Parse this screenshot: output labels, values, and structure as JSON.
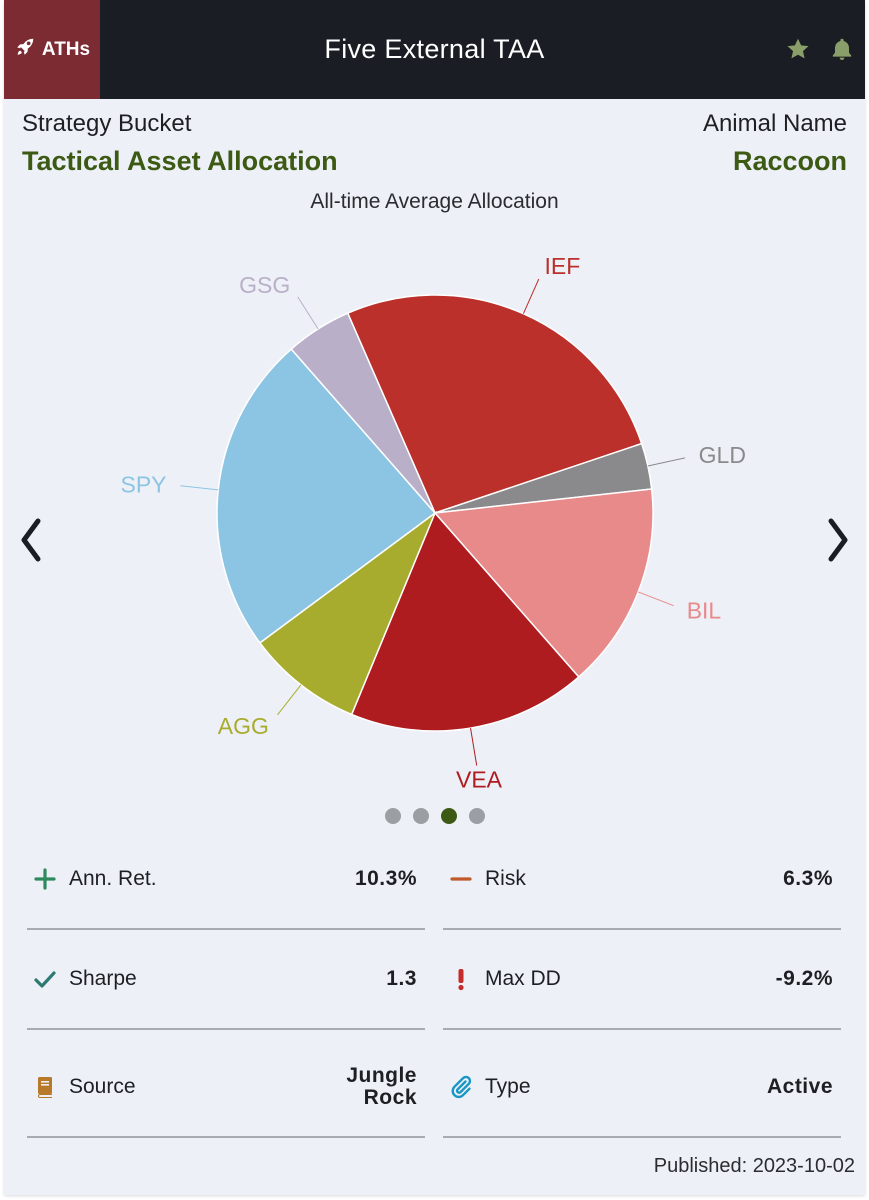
{
  "header": {
    "brand_label": "ATHs",
    "title": "Five External TAA",
    "icons": [
      "rocket-icon",
      "star-icon",
      "bell-icon"
    ],
    "colors": {
      "background": "#1a1d23",
      "brand": "#7d2b33",
      "icon": "#8a9e6a"
    }
  },
  "meta": {
    "left_label": "Strategy Bucket",
    "left_value": "Tactical Asset Allocation",
    "right_label": "Animal Name",
    "right_value": "Raccoon",
    "accent_color": "#3d5a14"
  },
  "chart_data": {
    "type": "pie",
    "title": "All-time Average Allocation",
    "slices": [
      {
        "name": "IEF",
        "value": 26.4,
        "color": "#bb302b"
      },
      {
        "name": "GLD",
        "value": 3.4,
        "color": "#8a898c"
      },
      {
        "name": "BIL",
        "value": 15.3,
        "color": "#e8898a"
      },
      {
        "name": "VEA",
        "value": 17.7,
        "color": "#ae1c20"
      },
      {
        "name": "AGG",
        "value": 8.6,
        "color": "#a8ac2e"
      },
      {
        "name": "SPY",
        "value": 23.7,
        "color": "#8cc4e4"
      },
      {
        "name": "GSG",
        "value": 4.9,
        "color": "#b9afc8"
      }
    ]
  },
  "carousel": {
    "pages": 4,
    "active_page": 3
  },
  "stats": [
    {
      "label": "Ann. Ret.",
      "value": "10.3%",
      "icon": "plus-icon"
    },
    {
      "label": "Risk",
      "value": "6.3%",
      "icon": "minus-icon"
    },
    {
      "label": "Sharpe",
      "value": "1.3",
      "icon": "check-icon"
    },
    {
      "label": "Max DD",
      "value": "-9.2%",
      "icon": "exclamation-icon"
    },
    {
      "label": "Source",
      "value": "Jungle Rock",
      "icon": "book-icon"
    },
    {
      "label": "Type",
      "value": "Active",
      "icon": "paperclip-icon"
    }
  ],
  "footer": {
    "published": "Published: 2023-10-02"
  }
}
